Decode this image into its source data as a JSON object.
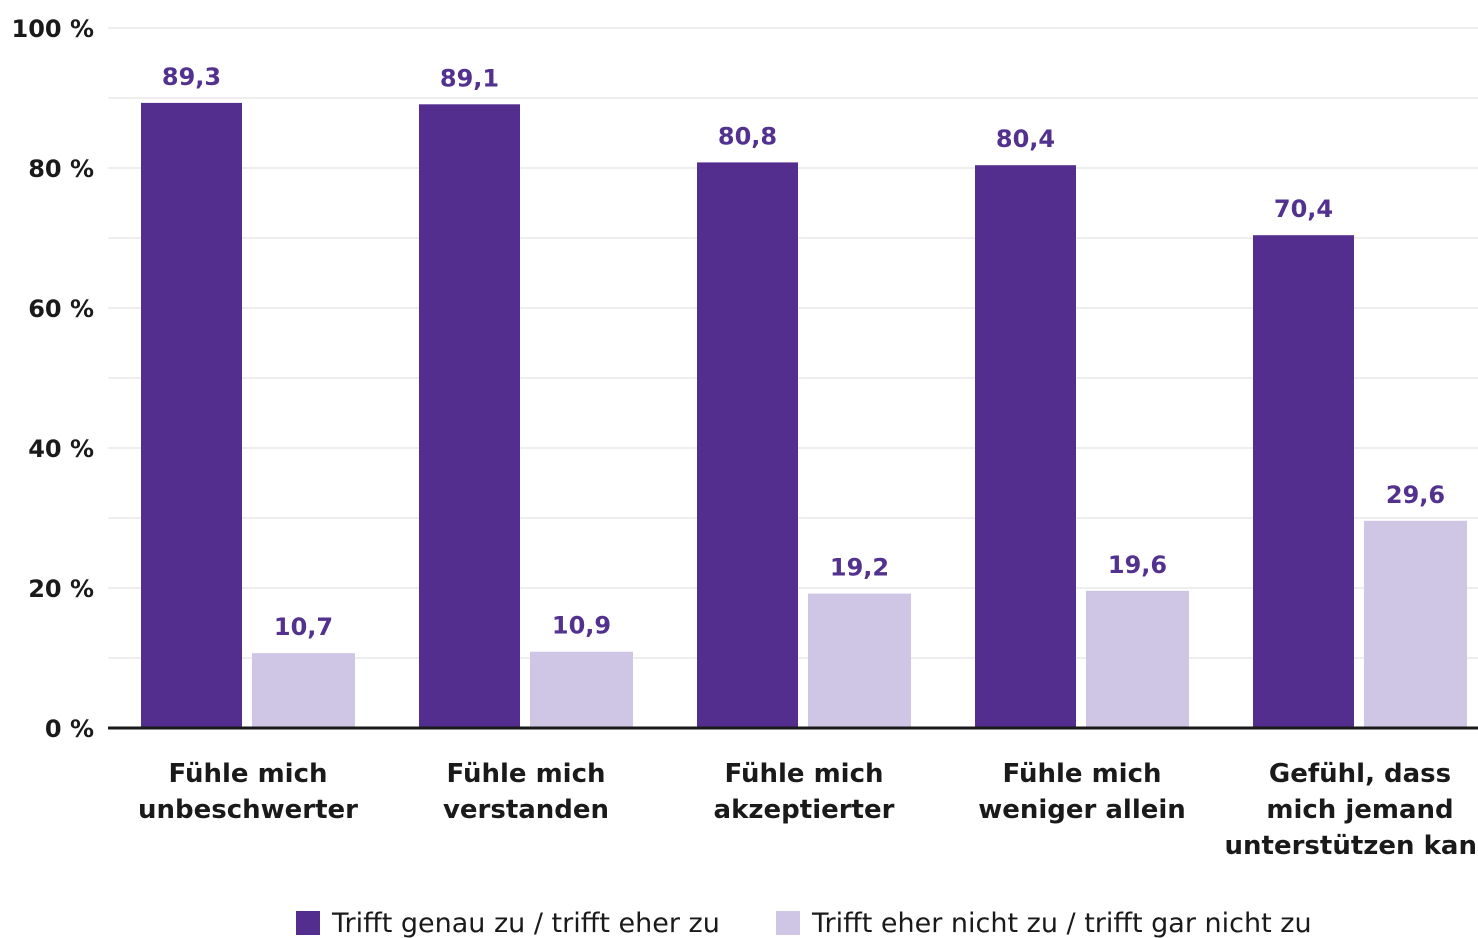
{
  "chart_data": {
    "type": "bar",
    "categories": [
      [
        "Fühle mich",
        "unbeschwerter"
      ],
      [
        "Fühle mich",
        "verstanden"
      ],
      [
        "Fühle mich",
        "akzeptierter"
      ],
      [
        "Fühle mich",
        "weniger allein"
      ],
      [
        "Gefühl, dass",
        "mich jemand",
        "unterstützen kann"
      ]
    ],
    "series": [
      {
        "name": "Trifft genau zu / trifft eher zu",
        "color": "#532e8e",
        "values": [
          89.3,
          89.1,
          80.8,
          80.4,
          70.4
        ],
        "labels": [
          "89,3",
          "89,1",
          "80,8",
          "80,4",
          "70,4"
        ]
      },
      {
        "name": "Trifft eher nicht zu / trifft gar nicht zu",
        "color": "#cfc6e5",
        "values": [
          10.7,
          10.9,
          19.2,
          19.6,
          29.6
        ],
        "labels": [
          "10,7",
          "10,9",
          "19,2",
          "19,6",
          "29,6"
        ]
      }
    ],
    "ylim": [
      0,
      100
    ],
    "yticks": [
      {
        "value": 0,
        "label": "0 %"
      },
      {
        "value": 20,
        "label": "20 %"
      },
      {
        "value": 40,
        "label": "40 %"
      },
      {
        "value": 60,
        "label": "60 %"
      },
      {
        "value": 80,
        "label": "80 %"
      },
      {
        "value": 100,
        "label": "100 %"
      }
    ],
    "grid": true,
    "legend_position": "bottom"
  }
}
